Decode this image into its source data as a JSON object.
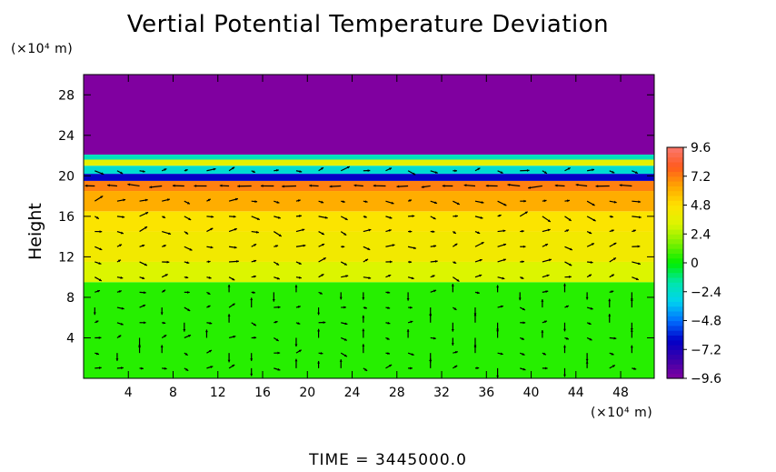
{
  "chart_data": {
    "type": "heatmap",
    "title": "Vertial Potential Temperature Deviation",
    "ylabel": "Height",
    "xlabel": "",
    "x_unit": "(×10⁴ m)",
    "y_unit": "(×10⁴ m)",
    "xlim": [
      0,
      51
    ],
    "ylim": [
      0,
      30
    ],
    "x_ticks": [
      "4",
      "8",
      "12",
      "16",
      "20",
      "24",
      "28",
      "32",
      "36",
      "40",
      "44",
      "48"
    ],
    "y_ticks": [
      "4",
      "8",
      "12",
      "16",
      "20",
      "24",
      "28"
    ],
    "colorbar": {
      "min": -9.6,
      "max": 9.6,
      "tick_labels": [
        "9.6",
        "7.2",
        "4.8",
        "2.4",
        "0",
        "−2.4",
        "−4.8",
        "−7.2",
        "−9.6"
      ]
    },
    "bands": [
      {
        "y0": 0,
        "y1": 9.5,
        "value": 0.5
      },
      {
        "y0": 9.5,
        "y1": 11.5,
        "value": 3.2
      },
      {
        "y0": 11.5,
        "y1": 14.5,
        "value": 4.2
      },
      {
        "y0": 14.5,
        "y1": 16.5,
        "value": 4.6
      },
      {
        "y0": 16.5,
        "y1": 18.5,
        "value": 6.2
      },
      {
        "y0": 18.5,
        "y1": 19.5,
        "value": 7.2
      },
      {
        "y0": 19.5,
        "y1": 20.2,
        "value": -6.5
      },
      {
        "y0": 20.2,
        "y1": 21.0,
        "value": -2.5
      },
      {
        "y0": 21.0,
        "y1": 21.6,
        "value": 3.5
      },
      {
        "y0": 21.6,
        "y1": 22.1,
        "value": -2.0
      },
      {
        "y0": 22.1,
        "y1": 30,
        "value": -9.6
      }
    ],
    "vector_field": {
      "x_spacing": 2,
      "y_spacing": 1.5,
      "y_max": 21
    }
  },
  "footer": {
    "time_label": "TIME  =  3445000.0"
  }
}
